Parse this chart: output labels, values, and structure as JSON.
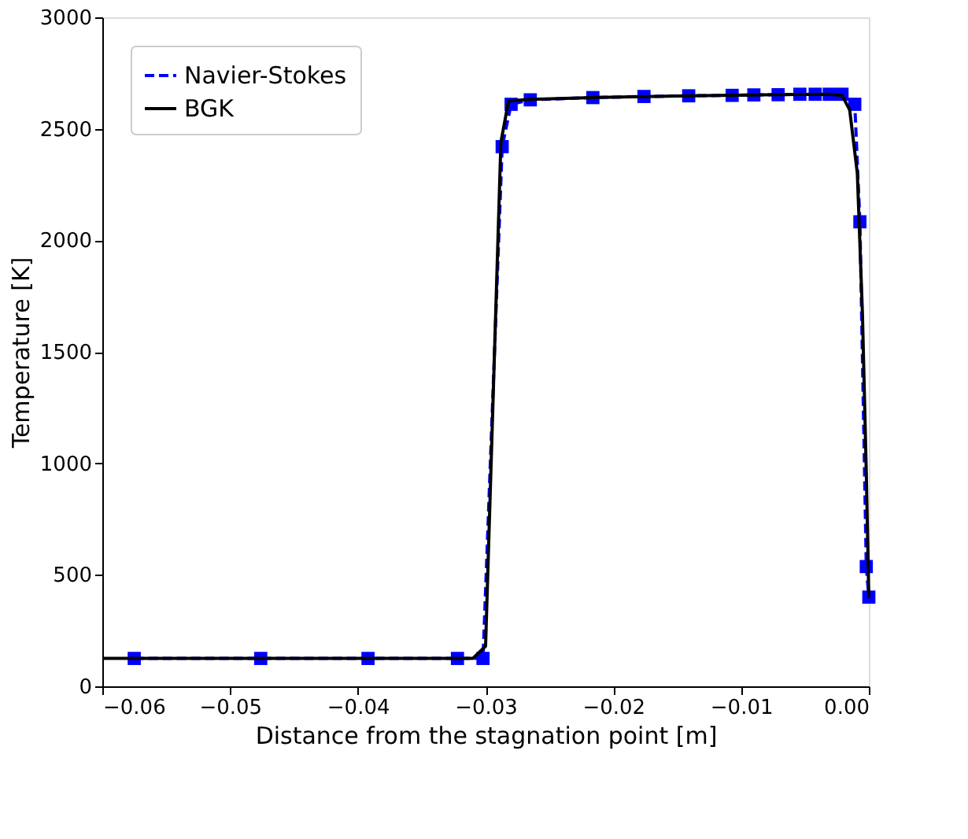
{
  "chart_data": {
    "type": "line",
    "xlabel": "Distance from the stagnation point [m]",
    "ylabel": "Temperature [K]",
    "xlim": [
      -0.06,
      0.0
    ],
    "ylim": [
      0,
      3000
    ],
    "xticks": [
      {
        "value": -0.06,
        "label": "−0.06"
      },
      {
        "value": -0.05,
        "label": "−0.05"
      },
      {
        "value": -0.04,
        "label": "−0.04"
      },
      {
        "value": -0.03,
        "label": "−0.03"
      },
      {
        "value": -0.02,
        "label": "−0.02"
      },
      {
        "value": -0.01,
        "label": "−0.01"
      },
      {
        "value": 0.0,
        "label": "0.00"
      }
    ],
    "yticks": [
      0,
      500,
      1000,
      1500,
      2000,
      2500,
      3000
    ],
    "grid": false,
    "legend": "top left",
    "series": [
      {
        "name": "Navier-Stokes",
        "color": "#0000ff",
        "marker": "square",
        "line_style": "dashed",
        "x": [
          -0.0575,
          -0.0476,
          -0.0392,
          -0.0322,
          -0.0302,
          -0.0287,
          -0.028,
          -0.0265,
          -0.0216,
          -0.0176,
          -0.0141,
          -0.0107,
          -0.009,
          -0.0071,
          -0.0054,
          -0.0042,
          -0.0031,
          -0.0021,
          -0.0011,
          -0.0007,
          -0.0002,
          0.0
        ],
        "values": [
          125,
          125,
          125,
          125,
          125,
          2420,
          2610,
          2630,
          2640,
          2645,
          2648,
          2650,
          2652,
          2653,
          2655,
          2655,
          2655,
          2655,
          2610,
          2083,
          537,
          400
        ]
      },
      {
        "name": "BGK",
        "color": "#000000",
        "marker": "none",
        "line_style": "solid",
        "x": [
          -0.06,
          -0.031,
          -0.03,
          -0.0288,
          -0.0282,
          -0.0265,
          -0.0216,
          -0.0141,
          -0.0071,
          -0.0031,
          -0.0021,
          -0.0015,
          -0.0009,
          -0.0005,
          -0.0002,
          0.0
        ],
        "values": [
          125,
          125,
          180,
          2440,
          2625,
          2632,
          2640,
          2648,
          2653,
          2655,
          2650,
          2585,
          2300,
          1670,
          960,
          395
        ]
      }
    ]
  }
}
